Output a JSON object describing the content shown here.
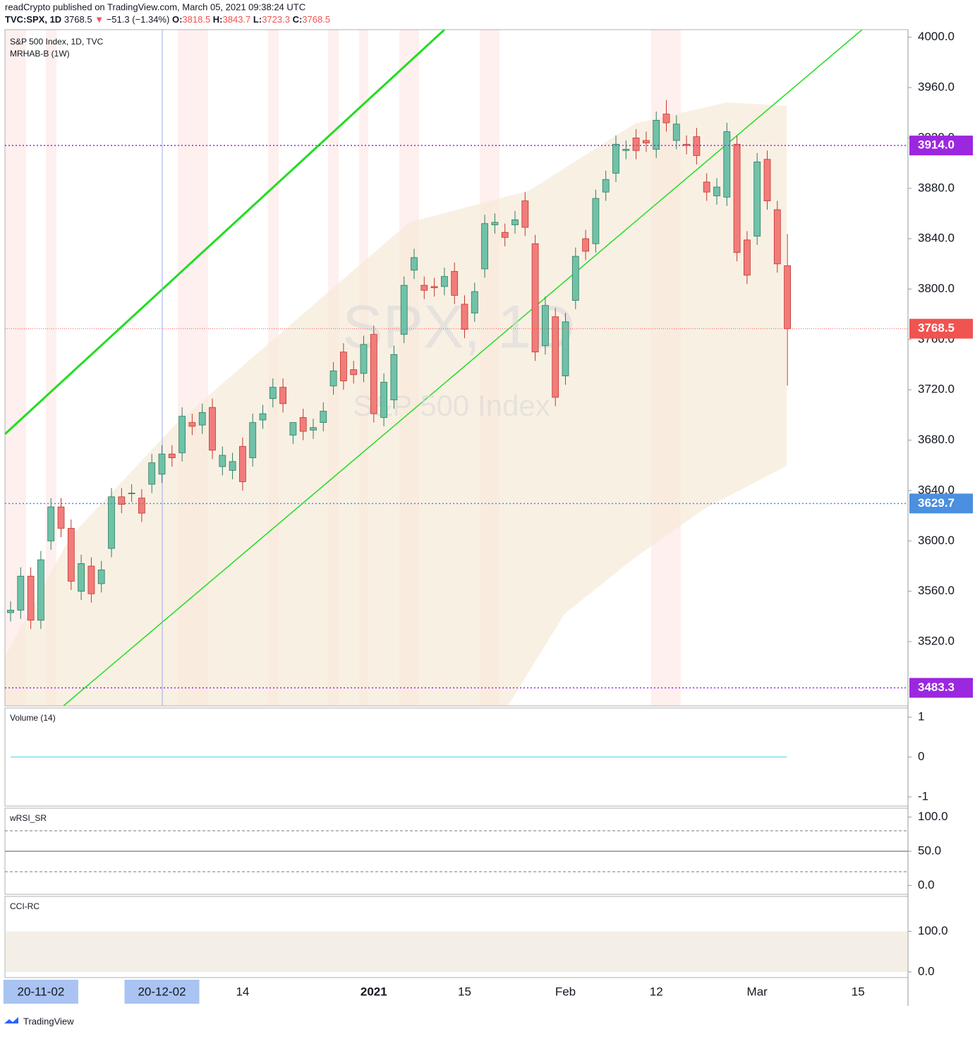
{
  "header": {
    "publisher": "readCrypto published on TradingView.com, March 05, 2021 09:38:24 UTC",
    "symbol": "TVC:SPX, 1D",
    "arrow": "▼",
    "change": "−51.3 (−1.34%)",
    "ohlc_labels": [
      "O:",
      "H:",
      "L:",
      "C:"
    ],
    "footer": "TradingView"
  },
  "chart_data": {
    "type": "candlestick",
    "title": "S&P 500 Index, 1D, TVC",
    "subtitle": "MRHAB-B (1W)",
    "watermark": "SPX, 1D",
    "watermark_sub": "S&P 500 Index",
    "colors": {
      "up": "#6fc2a9",
      "down": "#f27c7c",
      "up_border": "#2e7d5e",
      "down_border": "#c0392b"
    },
    "categories": [
      null,
      null,
      null,
      "20-11-02",
      null,
      null,
      null,
      null,
      null,
      null,
      null,
      null,
      null,
      null,
      null,
      "20-12-02",
      null,
      null,
      null,
      null,
      null,
      null,
      null,
      "14",
      null,
      null,
      null,
      null,
      null,
      null,
      null,
      null,
      null,
      null,
      null,
      null,
      "2021",
      null,
      null,
      null,
      null,
      null,
      null,
      null,
      null,
      "15",
      null,
      null,
      null,
      null,
      null,
      null,
      null,
      null,
      null,
      "Feb",
      null,
      null,
      null,
      null,
      null,
      null,
      null,
      null,
      "12",
      null,
      null,
      null,
      null,
      null,
      null,
      null,
      null,
      null,
      "Mar",
      null,
      null,
      null,
      null,
      null,
      null,
      null,
      null,
      null,
      "15"
    ],
    "open": [
      3543,
      3545,
      3572,
      3537,
      3600,
      3627,
      3610,
      3560,
      3580,
      3566,
      3594,
      3635,
      3638,
      3634,
      3645,
      3653,
      3669,
      3670,
      3694,
      3692,
      3706,
      3659,
      3656,
      3675,
      3666,
      3696,
      3713,
      3722,
      3684,
      3698,
      3688,
      3694,
      3723,
      3750,
      3736,
      3733,
      3764,
      3698,
      3712,
      3764,
      3815,
      3803,
      3802,
      3802,
      3814,
      3788,
      3781,
      3816,
      3851,
      3845,
      3851,
      3870,
      3836,
      3755,
      3778,
      3731,
      3791,
      3840,
      3836,
      3877,
      3892,
      3910,
      3920,
      3918,
      3911,
      3939,
      3918,
      3915,
      3921,
      3885,
      3874,
      3873,
      3915,
      3839,
      3842,
      3903,
      3863,
      3818.5,
      null,
      null,
      null,
      null,
      null,
      null,
      null
    ],
    "high": [
      3552,
      3579,
      3579,
      3592,
      3634,
      3634,
      3617,
      3589,
      3587,
      3584,
      3642,
      3642,
      3645,
      3641,
      3669,
      3676,
      3676,
      3706,
      3701,
      3709,
      3713,
      3675,
      3670,
      3682,
      3701,
      3708,
      3729,
      3729,
      3691,
      3705,
      3697,
      3710,
      3742,
      3757,
      3743,
      3763,
      3771,
      3733,
      3755,
      3810,
      3832,
      3810,
      3809,
      3817,
      3821,
      3795,
      3805,
      3859,
      3860,
      3852,
      3862,
      3877,
      3843,
      3794,
      3785,
      3781,
      3833,
      3847,
      3879,
      3894,
      3922,
      3918,
      3927,
      3925,
      3941,
      3950,
      3938,
      3922,
      3928,
      3892,
      3888,
      3932,
      3922,
      3846,
      3908,
      3910,
      3870,
      3843.7,
      null,
      null,
      null,
      null,
      null,
      null,
      null
    ],
    "low": [
      3536,
      3538,
      3530,
      3530,
      3593,
      3603,
      3561,
      3553,
      3551,
      3559,
      3587,
      3622,
      3631,
      3615,
      3638,
      3646,
      3659,
      3663,
      3684,
      3685,
      3665,
      3652,
      3649,
      3640,
      3659,
      3689,
      3706,
      3702,
      3677,
      3680,
      3681,
      3687,
      3716,
      3720,
      3725,
      3726,
      3694,
      3691,
      3705,
      3757,
      3808,
      3792,
      3794,
      3795,
      3788,
      3761,
      3774,
      3809,
      3844,
      3834,
      3844,
      3842,
      3743,
      3748,
      3707,
      3724,
      3784,
      3823,
      3829,
      3870,
      3885,
      3903,
      3903,
      3909,
      3904,
      3925,
      3911,
      3907,
      3899,
      3870,
      3867,
      3866,
      3822,
      3804,
      3835,
      3863,
      3813,
      3723.3,
      null,
      null,
      null,
      null,
      null,
      null,
      null
    ],
    "close": [
      3545,
      3572,
      3537,
      3585,
      3627,
      3610,
      3568,
      3582,
      3558,
      3577,
      3635,
      3629,
      3638,
      3622,
      3662,
      3669,
      3666,
      3699,
      3691,
      3702,
      3672,
      3668,
      3663,
      3647,
      3694,
      3701,
      3722,
      3709,
      3694,
      3687,
      3690,
      3703,
      3735,
      3727,
      3732,
      3756,
      3701,
      3726,
      3748,
      3803,
      3825,
      3799,
      3801,
      3810,
      3795,
      3768,
      3798,
      3852,
      3853,
      3841,
      3855,
      3849,
      3750,
      3787,
      3714,
      3774,
      3826,
      3830,
      3872,
      3887,
      3915,
      3911,
      3910,
      3916,
      3934,
      3932,
      3931,
      3914,
      3906,
      3877,
      3881,
      3925,
      3829,
      3811,
      3901,
      3870,
      3820,
      3768.5,
      null,
      null,
      null,
      null,
      null,
      null,
      null
    ],
    "ylim": [
      3469,
      4006
    ],
    "yticks": [
      {
        "value": 3520,
        "label": "3520.0"
      },
      {
        "value": 3560,
        "label": "3560.0"
      },
      {
        "value": 3600,
        "label": "3600.0"
      },
      {
        "value": 3640,
        "label": "3640.0"
      },
      {
        "value": 3680,
        "label": "3680.0"
      },
      {
        "value": 3720,
        "label": "3720.0"
      },
      {
        "value": 3760,
        "label": "3760.0"
      },
      {
        "value": 3800,
        "label": "3800.0"
      },
      {
        "value": 3840,
        "label": "3840.0"
      },
      {
        "value": 3880,
        "label": "3880.0"
      },
      {
        "value": 3920,
        "label": "3920.0"
      },
      {
        "value": 3960,
        "label": "3960.0"
      },
      {
        "value": 4000,
        "label": "4000.0"
      }
    ],
    "price_lines": [
      {
        "value": 3914,
        "label": "3914.0",
        "color": "#9c27e0"
      },
      {
        "value": 3629.7,
        "label": "3629.7",
        "color": "#4a8fe0"
      },
      {
        "value": 3483.3,
        "label": "3483.3",
        "color": "#9c27e0"
      }
    ],
    "last_price_color": "#f05350",
    "panes": [
      {
        "name": "Volume (14)",
        "ylim": [
          -1.23,
          1.23
        ],
        "yticks": [
          1,
          0,
          -1
        ],
        "line_color": "#4dd0e1"
      },
      {
        "name": "wRSI_SR",
        "ylim": [
          -13,
          113
        ],
        "yticks": [
          {
            "value": 100,
            "label": "100.0"
          },
          {
            "value": 50,
            "label": "50.0"
          },
          {
            "value": 0,
            "label": "0.0"
          }
        ],
        "levels": [
          80,
          20
        ]
      },
      {
        "name": "CCI-RC",
        "ylim": [
          -14,
          186
        ],
        "yticks": [
          {
            "value": 100,
            "label": "100.0"
          },
          {
            "value": 0,
            "label": "0.0"
          }
        ],
        "band": [
          0,
          100
        ]
      }
    ]
  }
}
